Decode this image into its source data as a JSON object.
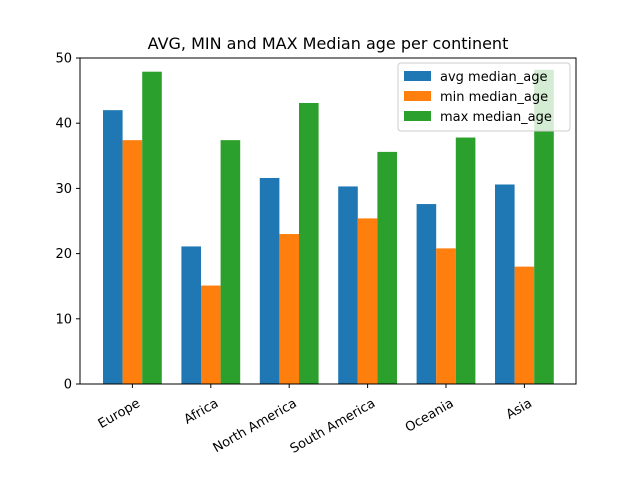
{
  "chart_data": {
    "type": "bar",
    "title": "AVG, MIN and MAX Median age per continent",
    "xlabel": "",
    "ylabel": "",
    "categories": [
      "Europe",
      "Africa",
      "North America",
      "South America",
      "Oceania",
      "Asia"
    ],
    "series": [
      {
        "name": "avg median_age",
        "color": "#1f77b4",
        "values": [
          42.0,
          21.1,
          31.6,
          30.3,
          27.6,
          30.6
        ]
      },
      {
        "name": "min median_age",
        "color": "#ff7f0e",
        "values": [
          37.4,
          15.1,
          23.0,
          25.4,
          20.8,
          18.0
        ]
      },
      {
        "name": "max median_age",
        "color": "#2ca02c",
        "values": [
          47.9,
          37.4,
          43.1,
          35.6,
          37.8,
          48.2
        ]
      }
    ],
    "ylim": [
      0,
      50
    ],
    "yticks": [
      0,
      10,
      20,
      30,
      40,
      50
    ],
    "grid": false,
    "legend_position": "top-right"
  }
}
